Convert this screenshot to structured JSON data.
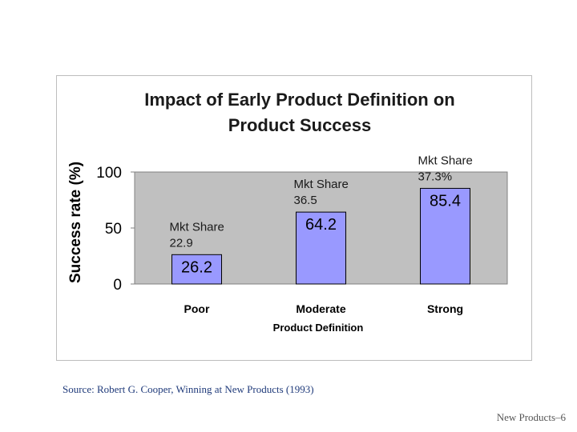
{
  "chart_data": {
    "type": "bar",
    "title_lines": [
      "Impact of Early Product Definition on",
      "Product Success"
    ],
    "xlabel": "Product Definition",
    "ylabel": "Success rate (%)",
    "categories": [
      "Poor",
      "Moderate",
      "Strong"
    ],
    "values": [
      26.2,
      64.2,
      85.4
    ],
    "data_labels": [
      "26.2",
      "64.2",
      "85.4"
    ],
    "ylim": [
      0,
      100
    ],
    "yticks": [
      0,
      50,
      100
    ],
    "annotations": [
      {
        "category": "Poor",
        "lines": [
          "Mkt Share",
          "22.9"
        ]
      },
      {
        "category": "Moderate",
        "lines": [
          "Mkt Share",
          "36.5"
        ]
      },
      {
        "category": "Strong",
        "lines": [
          "Mkt Share",
          "37.3%"
        ]
      }
    ],
    "bar_color": "#9999ff",
    "plot_background": "#c0c0c0",
    "grid": false,
    "legend": "none"
  },
  "source": "Source: Robert G. Cooper, Winning at New Products (1993)",
  "footer": "New Products–6"
}
